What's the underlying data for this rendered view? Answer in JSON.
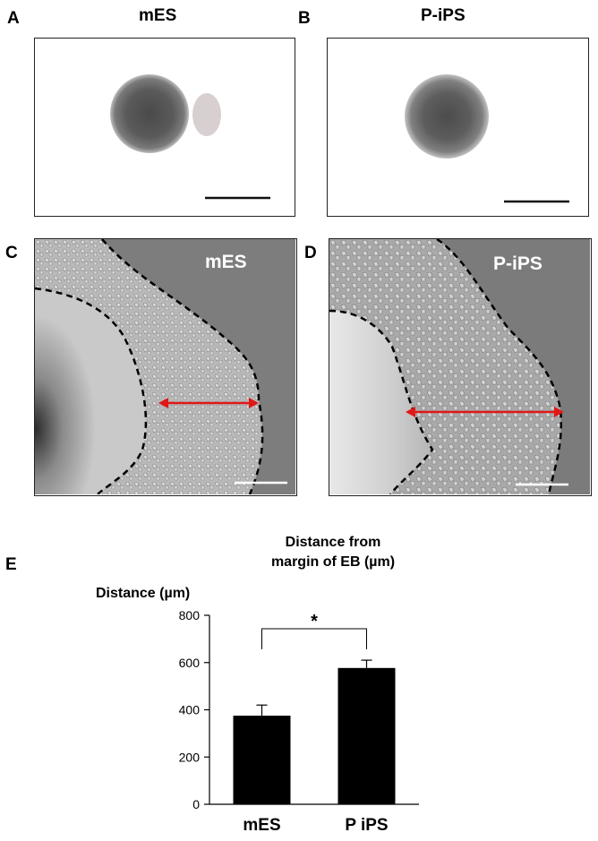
{
  "panels": {
    "A": {
      "letter": "A",
      "title": "mES"
    },
    "B": {
      "letter": "B",
      "title": "P-iPS"
    },
    "C": {
      "letter": "C",
      "label": "mES"
    },
    "D": {
      "letter": "D",
      "label": "P-iPS"
    },
    "E": {
      "letter": "E"
    }
  },
  "chart_data": {
    "type": "bar",
    "title": "Distance from\nmargin of EB (µm)",
    "ylabel": "Distance (µm)",
    "xlabel": "",
    "categories": [
      "mES",
      "P iPS"
    ],
    "values": [
      375,
      577
    ],
    "errors": [
      45,
      33
    ],
    "ylim": [
      0,
      800
    ],
    "yticks": [
      0,
      200,
      400,
      600,
      800
    ],
    "significance": "*",
    "bar_color": "#000000"
  }
}
